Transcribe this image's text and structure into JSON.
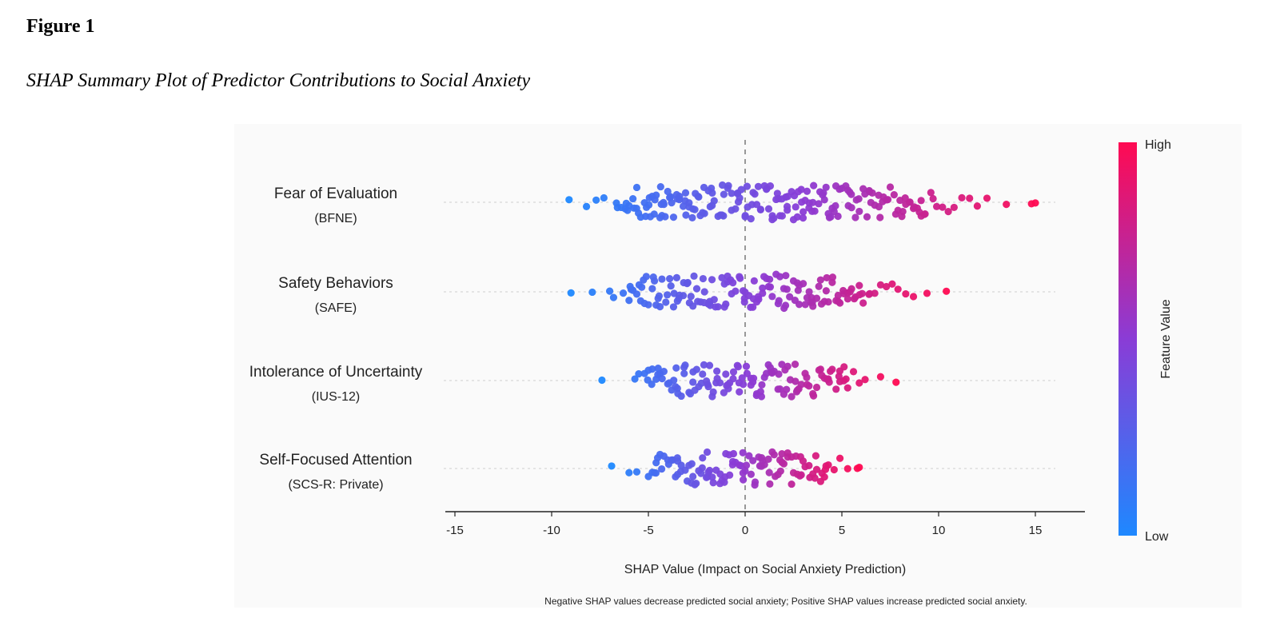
{
  "figure": {
    "label": "Figure 1",
    "title": "SHAP Summary Plot of Predictor Contributions to Social Anxiety"
  },
  "chart_data": {
    "type": "scatter",
    "subtype": "shap-beeswarm",
    "xlabel": "SHAP Value (Impact on Social Anxiety Prediction)",
    "note": "Negative SHAP values decrease predicted social anxiety; Positive SHAP values increase predicted social anxiety.",
    "xlim": [
      -16.5,
      17.5
    ],
    "xticks": [
      -15,
      -10,
      -5,
      0,
      5,
      10,
      15
    ],
    "zero_line": 0,
    "grid": false,
    "colorbar": {
      "label": "Feature Value",
      "high_label": "High",
      "low_label": "Low",
      "low_color": "#1e88ff",
      "mid_color": "#8a3cd6",
      "high_color": "#ff0a52",
      "position": "right"
    },
    "features": [
      {
        "name": "Fear of Evaluation",
        "abbr": "(BFNE)",
        "min": -9.1,
        "max": 15.0,
        "values": [
          -9.1,
          -8.2,
          -7.7,
          -7.3,
          -6.6,
          -6.4,
          -6.2,
          -6.0,
          -5.8,
          -5.6,
          -5.4,
          -5.2,
          -5.1,
          -4.9,
          -4.7,
          -4.6,
          -4.4,
          -4.3,
          -4.2,
          -4.0,
          -3.9,
          -3.7,
          -3.5,
          -3.4,
          -3.2,
          -3.1,
          -2.9,
          -2.7,
          -2.6,
          -2.4,
          -2.2,
          -2.1,
          -1.9,
          -1.7,
          -1.6,
          -1.4,
          -1.2,
          -1.1,
          -0.9,
          -0.7,
          -0.5,
          -0.4,
          -0.2,
          0.0,
          0.1,
          0.3,
          0.5,
          0.6,
          0.8,
          1.0,
          1.1,
          1.3,
          1.4,
          1.6,
          1.8,
          1.9,
          2.1,
          2.2,
          2.4,
          2.5,
          2.7,
          2.9,
          3.0,
          3.2,
          3.3,
          3.5,
          3.6,
          3.8,
          4.0,
          4.1,
          4.3,
          4.5,
          4.6,
          4.8,
          5.0,
          5.2,
          5.4,
          5.5,
          5.7,
          5.9,
          6.1,
          6.3,
          6.5,
          6.7,
          6.9,
          7.1,
          7.3,
          7.5,
          7.7,
          7.9,
          8.1,
          8.3,
          8.5,
          8.7,
          8.9,
          9.1,
          9.3,
          9.6,
          9.9,
          10.2,
          10.5,
          10.8,
          11.2,
          11.6,
          12.0,
          12.5,
          13.5,
          14.8,
          15.0
        ]
      },
      {
        "name": "Safety Behaviors",
        "abbr": "(SAFE)",
        "min": -9.0,
        "max": 10.4,
        "values": [
          -9.0,
          -7.9,
          -7.0,
          -6.8,
          -6.3,
          -6.0,
          -5.8,
          -5.6,
          -5.4,
          -5.2,
          -5.0,
          -4.8,
          -4.6,
          -4.4,
          -4.3,
          -4.1,
          -3.9,
          -3.7,
          -3.5,
          -3.4,
          -3.2,
          -3.0,
          -2.8,
          -2.7,
          -2.5,
          -2.3,
          -2.1,
          -1.9,
          -1.8,
          -1.6,
          -1.4,
          -1.2,
          -1.0,
          -0.9,
          -0.7,
          -0.5,
          -0.3,
          -0.1,
          0.0,
          0.2,
          0.4,
          0.6,
          0.7,
          0.9,
          1.1,
          1.3,
          1.4,
          1.6,
          1.8,
          2.0,
          2.1,
          2.3,
          2.5,
          2.7,
          2.8,
          3.0,
          3.2,
          3.4,
          3.5,
          3.7,
          3.9,
          4.1,
          4.3,
          4.5,
          4.7,
          4.9,
          5.1,
          5.3,
          5.5,
          5.7,
          5.9,
          6.1,
          6.4,
          6.7,
          7.0,
          7.3,
          7.6,
          7.9,
          8.3,
          8.7,
          9.4,
          10.4
        ]
      },
      {
        "name": "Intolerance of Uncertainty",
        "abbr": "(IUS-12)",
        "min": -7.4,
        "max": 7.8,
        "values": [
          -7.4,
          -5.7,
          -5.5,
          -5.2,
          -5.0,
          -4.8,
          -4.6,
          -4.4,
          -4.2,
          -4.0,
          -3.8,
          -3.6,
          -3.5,
          -3.3,
          -3.1,
          -2.9,
          -2.7,
          -2.6,
          -2.4,
          -2.2,
          -2.0,
          -1.9,
          -1.7,
          -1.5,
          -1.3,
          -1.1,
          -1.0,
          -0.8,
          -0.6,
          -0.4,
          -0.3,
          -0.1,
          0.1,
          0.3,
          0.4,
          0.6,
          0.8,
          1.0,
          1.1,
          1.3,
          1.5,
          1.7,
          1.8,
          2.0,
          2.2,
          2.4,
          2.6,
          2.7,
          2.9,
          3.1,
          3.3,
          3.5,
          3.7,
          3.9,
          4.1,
          4.3,
          4.5,
          4.7,
          4.9,
          5.1,
          5.3,
          5.6,
          5.9,
          6.2,
          7.0,
          7.8
        ]
      },
      {
        "name": "Self-Focused Attention",
        "abbr": "(SCS-R: Private)",
        "min": -6.9,
        "max": 5.9,
        "values": [
          -6.9,
          -6.0,
          -5.6,
          -5.0,
          -4.8,
          -4.6,
          -4.4,
          -4.2,
          -4.0,
          -3.8,
          -3.6,
          -3.5,
          -3.3,
          -3.1,
          -2.9,
          -2.7,
          -2.6,
          -2.4,
          -2.2,
          -2.0,
          -1.9,
          -1.7,
          -1.5,
          -1.3,
          -1.2,
          -1.0,
          -0.8,
          -0.6,
          -0.5,
          -0.3,
          -0.1,
          0.0,
          0.2,
          0.4,
          0.5,
          0.7,
          0.9,
          1.0,
          1.2,
          1.4,
          1.5,
          1.7,
          1.9,
          2.0,
          2.2,
          2.4,
          2.5,
          2.7,
          2.9,
          3.1,
          3.3,
          3.5,
          3.7,
          3.9,
          4.1,
          4.3,
          4.6,
          4.9,
          5.3,
          5.8,
          5.9
        ]
      }
    ]
  }
}
